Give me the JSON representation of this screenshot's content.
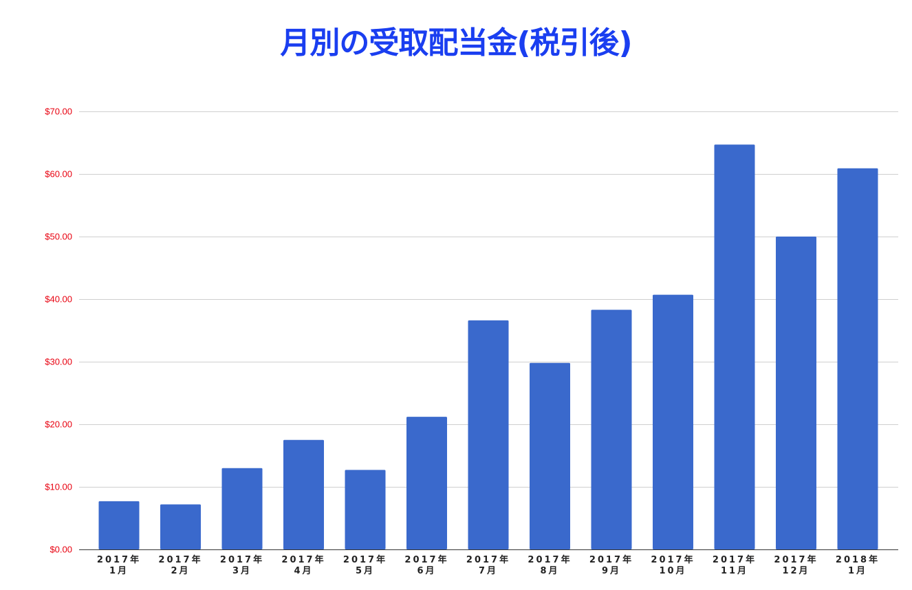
{
  "colors": {
    "title": "#1a3ef0",
    "bar": "#3a69cc",
    "y_tick_label": "#e8000f",
    "gridline": "#cfcfcf",
    "axis": "#333333"
  },
  "chart_data": {
    "type": "bar",
    "title": "月別の受取配当金(税引後)",
    "xlabel": "",
    "ylabel": "",
    "ylim": [
      0,
      70
    ],
    "grid": true,
    "categories": [
      [
        "2017年",
        "1月"
      ],
      [
        "2017年",
        "2月"
      ],
      [
        "2017年",
        "3月"
      ],
      [
        "2017年",
        "4月"
      ],
      [
        "2017年",
        "5月"
      ],
      [
        "2017年",
        "6月"
      ],
      [
        "2017年",
        "7月"
      ],
      [
        "2017年",
        "8月"
      ],
      [
        "2017年",
        "9月"
      ],
      [
        "2017年",
        "10月"
      ],
      [
        "2017年",
        "11月"
      ],
      [
        "2017年",
        "12月"
      ],
      [
        "2018年",
        "1月"
      ]
    ],
    "values": [
      7.7,
      7.2,
      13.0,
      17.5,
      12.7,
      21.2,
      36.6,
      29.8,
      38.3,
      40.7,
      64.7,
      50.0,
      60.9
    ],
    "y_ticks": [
      0,
      10,
      20,
      30,
      40,
      50,
      60,
      70
    ],
    "y_tick_labels": [
      "$0.00",
      "$10.00",
      "$20.00",
      "$30.00",
      "$40.00",
      "$50.00",
      "$60.00",
      "$70.00"
    ]
  }
}
